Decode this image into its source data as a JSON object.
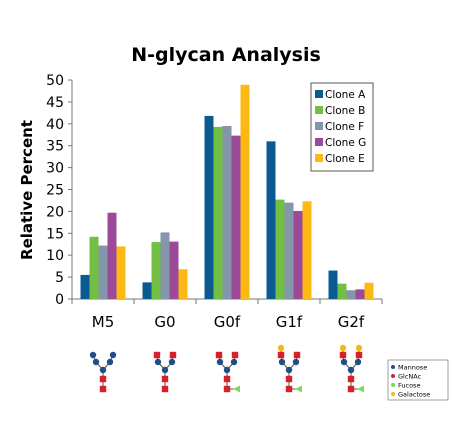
{
  "chart_data": {
    "type": "bar",
    "title": "N-glycan Analysis",
    "xlabel": "",
    "ylabel": "Relative Percent",
    "ylim": [
      0,
      50
    ],
    "yticks": [
      0,
      5,
      10,
      15,
      20,
      25,
      30,
      35,
      40,
      45,
      50
    ],
    "categories": [
      "M5",
      "G0",
      "G0f",
      "G1f",
      "G2f"
    ],
    "series": [
      {
        "name": "Clone A",
        "color": "#0b5b93",
        "values": [
          5.5,
          3.8,
          41.8,
          36.0,
          6.5
        ]
      },
      {
        "name": "Clone B",
        "color": "#72bf44",
        "values": [
          14.2,
          13.0,
          39.3,
          22.7,
          3.5
        ]
      },
      {
        "name": "Clone F",
        "color": "#8496a9",
        "values": [
          12.2,
          15.2,
          39.5,
          22.0,
          2.0
        ]
      },
      {
        "name": "Clone G",
        "color": "#9b4a9a",
        "values": [
          19.7,
          13.1,
          37.3,
          20.1,
          2.2
        ]
      },
      {
        "name": "Clone E",
        "color": "#fcb813",
        "values": [
          12.0,
          6.8,
          48.9,
          22.3,
          3.7
        ]
      }
    ],
    "grid": false,
    "legend_position": "top-right"
  },
  "glycan_legend": {
    "items": [
      {
        "label": "Mannose",
        "color": "#1f4e8a"
      },
      {
        "label": "GlcNAc",
        "color": "#d6202a"
      },
      {
        "label": "Fucose",
        "color": "#7ed957"
      },
      {
        "label": "Galactose",
        "color": "#f5b81c"
      }
    ]
  }
}
